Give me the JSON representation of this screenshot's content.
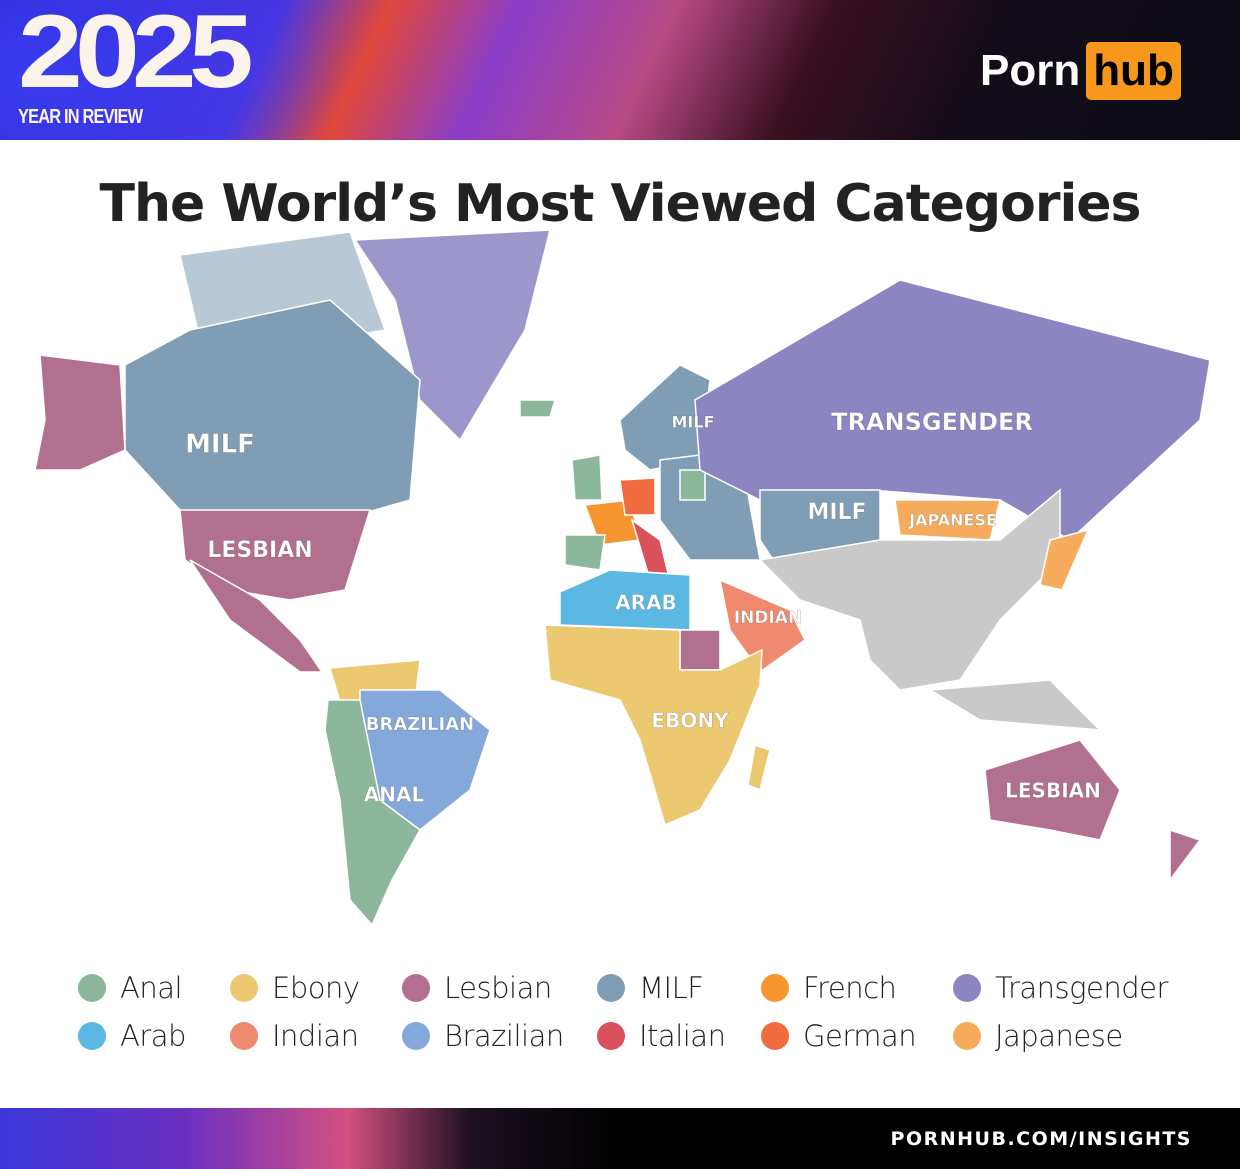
{
  "header": {
    "year": "2025",
    "subtitle": "YEAR IN REVIEW",
    "logo_left": "Porn",
    "logo_right": "hub"
  },
  "title": "The World’s Most Viewed Categories",
  "colors": {
    "anal": "#8db79d",
    "ebony": "#ecc870",
    "lesbian": "#b0708e",
    "milf": "#7f9db4",
    "french": "#f7962f",
    "transgender": "#8b85c1",
    "arab": "#5ab8e3",
    "indian": "#f08a6e",
    "brazilian": "#84a8d9",
    "italian": "#d9515a",
    "german": "#f06c3f",
    "japanese": "#f7ab5c",
    "none": "#c9c9c9"
  },
  "map_labels": [
    {
      "text": "MILF",
      "category": "milf"
    },
    {
      "text": "LESBIAN",
      "category": "lesbian"
    },
    {
      "text": "MILF",
      "category": "milf"
    },
    {
      "text": "TRANSGENDER",
      "category": "transgender"
    },
    {
      "text": "MILF",
      "category": "milf"
    },
    {
      "text": "JAPANESE",
      "category": "japanese"
    },
    {
      "text": "ARAB",
      "category": "arab"
    },
    {
      "text": "INDIAN",
      "category": "indian"
    },
    {
      "text": "BRAZILIAN",
      "category": "brazilian"
    },
    {
      "text": "EBONY",
      "category": "ebony"
    },
    {
      "text": "ANAL",
      "category": "anal"
    },
    {
      "text": "LESBIAN",
      "category": "lesbian"
    }
  ],
  "legend": [
    {
      "label": "Anal",
      "key": "anal"
    },
    {
      "label": "Ebony",
      "key": "ebony"
    },
    {
      "label": "Lesbian",
      "key": "lesbian"
    },
    {
      "label": "MILF",
      "key": "milf"
    },
    {
      "label": "French",
      "key": "french"
    },
    {
      "label": "Transgender",
      "key": "transgender"
    },
    {
      "label": "Arab",
      "key": "arab"
    },
    {
      "label": "Indian",
      "key": "indian"
    },
    {
      "label": "Brazilian",
      "key": "brazilian"
    },
    {
      "label": "Italian",
      "key": "italian"
    },
    {
      "label": "German",
      "key": "german"
    },
    {
      "label": "Japanese",
      "key": "japanese"
    }
  ],
  "footer": {
    "url": "PORNHUB.COM/INSIGHTS"
  }
}
